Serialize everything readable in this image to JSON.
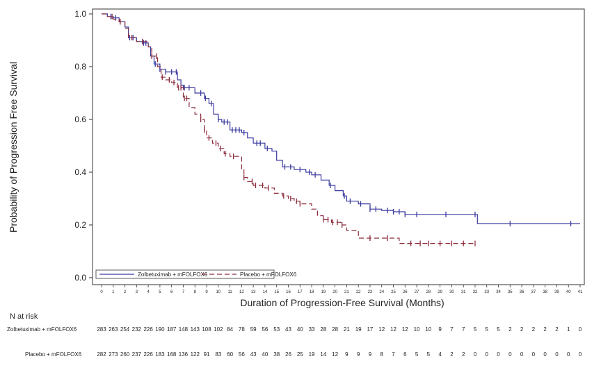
{
  "chart_data": {
    "type": "line",
    "title": "",
    "xlabel": "Duration of Progression-Free Survival (Months)",
    "ylabel": "Probability of Progression Free Survival",
    "xlim": [
      0,
      41
    ],
    "ylim": [
      0.0,
      1.0
    ],
    "x_ticks": [
      0,
      1,
      2,
      3,
      4,
      5,
      6,
      7,
      8,
      9,
      10,
      11,
      12,
      13,
      14,
      15,
      16,
      17,
      18,
      19,
      20,
      21,
      22,
      23,
      24,
      25,
      26,
      27,
      28,
      29,
      30,
      31,
      32,
      33,
      34,
      35,
      36,
      37,
      38,
      39,
      40,
      41
    ],
    "y_ticks": [
      0.0,
      0.2,
      0.4,
      0.6,
      0.8,
      1.0
    ],
    "y_tick_labels": [
      "0.0",
      "0.2",
      "0.4",
      "0.6",
      "0.8",
      "1.0"
    ],
    "grid": false,
    "legend_position": "bottom-left",
    "series": [
      {
        "name": "Zolbetuximab + mFOLFOX6",
        "color": "#3a3aa0",
        "line_style": "solid",
        "steps": [
          [
            0,
            1.0
          ],
          [
            0.5,
            0.99
          ],
          [
            1,
            0.985
          ],
          [
            1.5,
            0.97
          ],
          [
            2,
            0.95
          ],
          [
            2.3,
            0.91
          ],
          [
            3,
            0.895
          ],
          [
            3.5,
            0.89
          ],
          [
            4,
            0.875
          ],
          [
            4.2,
            0.84
          ],
          [
            4.5,
            0.81
          ],
          [
            5,
            0.79
          ],
          [
            5.5,
            0.78
          ],
          [
            6.5,
            0.75
          ],
          [
            6.8,
            0.73
          ],
          [
            7,
            0.72
          ],
          [
            8,
            0.7
          ],
          [
            8.8,
            0.68
          ],
          [
            9.2,
            0.66
          ],
          [
            9.6,
            0.62
          ],
          [
            10,
            0.6
          ],
          [
            10.3,
            0.59
          ],
          [
            11,
            0.56
          ],
          [
            12,
            0.55
          ],
          [
            12.5,
            0.53
          ],
          [
            13,
            0.51
          ],
          [
            14,
            0.49
          ],
          [
            14.6,
            0.48
          ],
          [
            15,
            0.445
          ],
          [
            15.5,
            0.42
          ],
          [
            16.5,
            0.41
          ],
          [
            17.5,
            0.4
          ],
          [
            18,
            0.39
          ],
          [
            18.8,
            0.37
          ],
          [
            19.5,
            0.35
          ],
          [
            20,
            0.33
          ],
          [
            20.7,
            0.31
          ],
          [
            21,
            0.29
          ],
          [
            22,
            0.28
          ],
          [
            23,
            0.26
          ],
          [
            24,
            0.255
          ],
          [
            25,
            0.25
          ],
          [
            26,
            0.24
          ],
          [
            32,
            0.24
          ],
          [
            32.2,
            0.205
          ],
          [
            41,
            0.205
          ]
        ],
        "end_x": 40.2,
        "censor_x": [
          0.8,
          1.2,
          1.6,
          2.4,
          2.7,
          3.6,
          3.8,
          4.3,
          4.6,
          5.0,
          5.5,
          6.0,
          6.4,
          7.1,
          7.5,
          8.5,
          8.9,
          9.4,
          10.0,
          10.5,
          10.8,
          11.2,
          11.5,
          11.8,
          12.2,
          13.3,
          13.6,
          14.2,
          15.7,
          16.2,
          17.0,
          17.8,
          18.3,
          19.6,
          20.8,
          21.3,
          22.2,
          23.0,
          23.5,
          24.5,
          25.0,
          25.5,
          26.0,
          27.0,
          29.5,
          32.0,
          35.0,
          40.2
        ],
        "n_at_risk": [
          283,
          263,
          254,
          232,
          226,
          190,
          187,
          148,
          143,
          108,
          102,
          84,
          78,
          59,
          56,
          53,
          43,
          40,
          33,
          28,
          28,
          21,
          19,
          17,
          12,
          12,
          12,
          10,
          10,
          9,
          7,
          7,
          5,
          5,
          5,
          2,
          2,
          2,
          2,
          2,
          1,
          0
        ],
        "n_label": "Zolbetuximab + mFOLFOX6"
      },
      {
        "name": "Placebo + mFOLFOX6",
        "color": "#8b2a3a",
        "line_style": "dashed",
        "steps": [
          [
            0,
            1.0
          ],
          [
            0.5,
            0.99
          ],
          [
            1,
            0.98
          ],
          [
            1.5,
            0.97
          ],
          [
            2,
            0.945
          ],
          [
            2.3,
            0.91
          ],
          [
            3,
            0.895
          ],
          [
            4,
            0.875
          ],
          [
            4.3,
            0.84
          ],
          [
            4.8,
            0.8
          ],
          [
            5.1,
            0.76
          ],
          [
            5.5,
            0.75
          ],
          [
            6,
            0.74
          ],
          [
            6.5,
            0.72
          ],
          [
            7,
            0.68
          ],
          [
            7.5,
            0.645
          ],
          [
            8,
            0.62
          ],
          [
            8.5,
            0.6
          ],
          [
            8.8,
            0.56
          ],
          [
            9,
            0.53
          ],
          [
            9.5,
            0.51
          ],
          [
            10,
            0.49
          ],
          [
            10.5,
            0.47
          ],
          [
            11,
            0.46
          ],
          [
            12,
            0.41
          ],
          [
            12.2,
            0.38
          ],
          [
            12.5,
            0.365
          ],
          [
            13,
            0.35
          ],
          [
            14,
            0.34
          ],
          [
            14.8,
            0.32
          ],
          [
            15.5,
            0.31
          ],
          [
            16,
            0.3
          ],
          [
            16.5,
            0.29
          ],
          [
            17,
            0.28
          ],
          [
            18,
            0.26
          ],
          [
            18.5,
            0.235
          ],
          [
            19,
            0.22
          ],
          [
            19.7,
            0.21
          ],
          [
            20.5,
            0.2
          ],
          [
            21,
            0.18
          ],
          [
            22,
            0.15
          ],
          [
            25.5,
            0.13
          ],
          [
            32,
            0.13
          ]
        ],
        "end_x": 32,
        "censor_x": [
          0.9,
          1.6,
          2.6,
          3.5,
          4.3,
          4.7,
          5.2,
          5.8,
          6.2,
          6.6,
          6.8,
          7.1,
          7.3,
          8.5,
          8.8,
          9.2,
          9.8,
          10.2,
          10.6,
          11.3,
          12.2,
          12.9,
          13.2,
          13.8,
          14.3,
          15.6,
          16.2,
          16.7,
          17.0,
          19.0,
          19.4,
          19.8,
          20.2,
          20.6,
          23.0,
          24.5,
          26.5,
          27.3,
          28.0,
          29.0,
          30.0,
          31.0,
          32.0
        ],
        "n_at_risk": [
          282,
          273,
          260,
          237,
          226,
          183,
          168,
          136,
          122,
          91,
          83,
          60,
          56,
          43,
          40,
          38,
          26,
          25,
          19,
          14,
          12,
          9,
          9,
          9,
          8,
          7,
          6,
          5,
          5,
          4,
          2,
          2,
          0,
          0,
          0,
          0,
          0,
          0,
          0,
          0,
          0,
          0
        ],
        "n_label": "Placebo + mFOLFOX6"
      }
    ],
    "n_at_risk_title": "N at risk"
  }
}
